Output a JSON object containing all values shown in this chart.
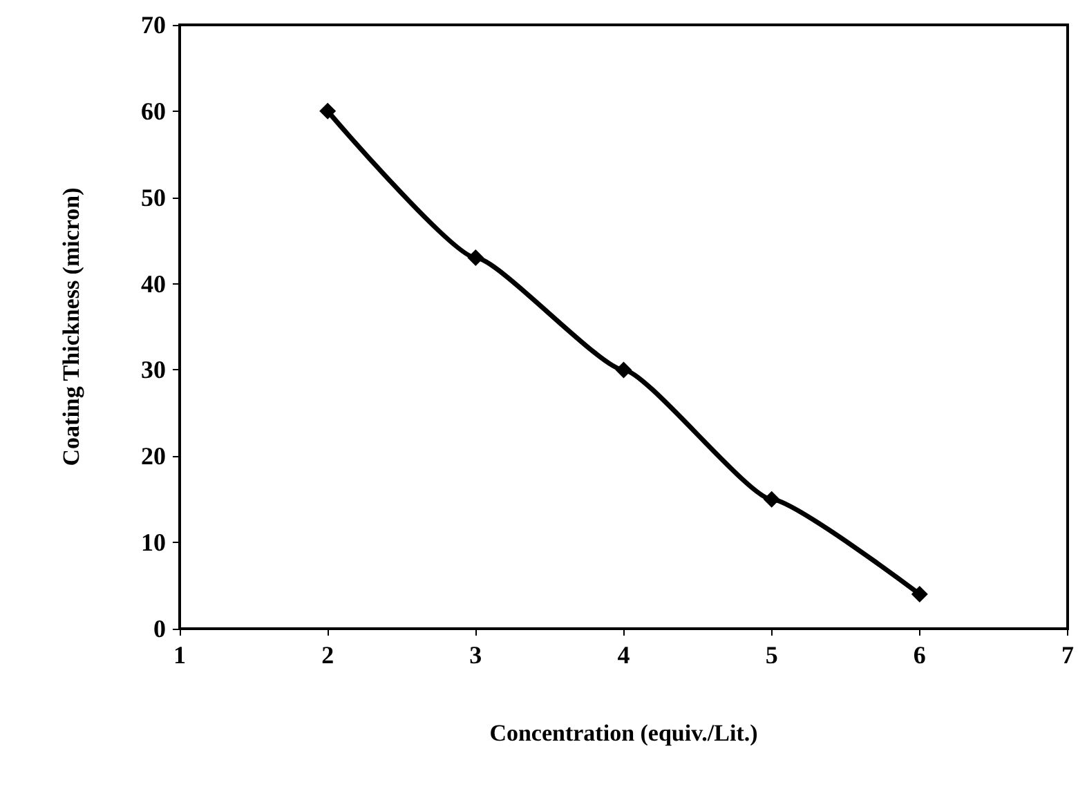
{
  "chart_data": {
    "type": "line",
    "xlabel": "Concentration (equiv./Lit.)",
    "ylabel": "Coating Thickness (micron)",
    "x": [
      2,
      3,
      4,
      5,
      6
    ],
    "series": [
      {
        "color": "#000000",
        "values": [
          60,
          43,
          30,
          15,
          4
        ]
      }
    ],
    "xlim": [
      1,
      7
    ],
    "xticks": [
      1,
      2,
      3,
      4,
      5,
      6,
      7
    ],
    "ylim": [
      0,
      70
    ],
    "yticks": [
      0,
      10,
      20,
      30,
      40,
      50,
      60,
      70
    ],
    "grid": false,
    "marker": "diamond",
    "line_style": "solid"
  }
}
